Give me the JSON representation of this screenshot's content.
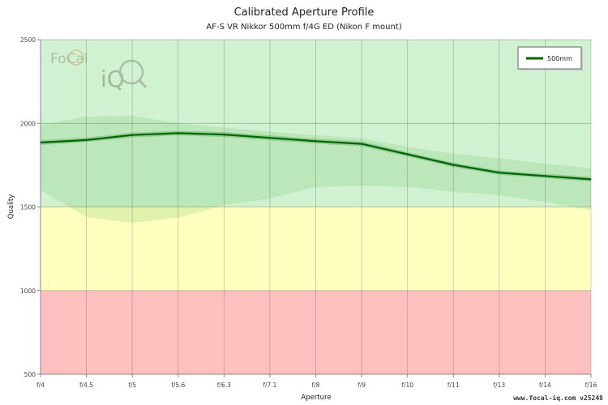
{
  "chart_data": {
    "type": "line",
    "title": "Calibrated Aperture Profile",
    "subtitle": "AF-S VR Nikkor 500mm f/4G ED (Nikon F mount)",
    "xlabel": "Aperture",
    "ylabel": "Quality",
    "categories": [
      "f/4",
      "f/4.5",
      "f/5",
      "f/5.6",
      "f/6.3",
      "f/7.1",
      "f/8",
      "f/9",
      "f/10",
      "f/11",
      "f/13",
      "f/14",
      "f/16"
    ],
    "ylim": [
      500,
      2500
    ],
    "yticks": [
      500,
      1000,
      1500,
      2000,
      2500
    ],
    "bands": [
      {
        "from": 500,
        "to": 1000,
        "color": "#ffc0c0"
      },
      {
        "from": 1000,
        "to": 1500,
        "color": "#ffffc0"
      },
      {
        "from": 1500,
        "to": 2500,
        "color": "#d0f2d0"
      }
    ],
    "outer_range": {
      "upper": [
        1990,
        2040,
        2045,
        2000,
        1975,
        1950,
        1930,
        1910,
        1860,
        1820,
        1790,
        1760,
        1730
      ],
      "lower": [
        1600,
        1440,
        1405,
        1435,
        1510,
        1550,
        1620,
        1628,
        1620,
        1590,
        1570,
        1530,
        1480
      ]
    },
    "inner_range": {
      "upper": [
        1900,
        1915,
        1945,
        1955,
        1948,
        1928,
        1908,
        1892,
        1828,
        1765,
        1718,
        1698,
        1680
      ],
      "lower": [
        1870,
        1888,
        1915,
        1928,
        1918,
        1898,
        1878,
        1862,
        1802,
        1738,
        1692,
        1672,
        1652
      ]
    },
    "series": [
      {
        "name": "500mm",
        "color": "#006400",
        "values": [
          1885,
          1900,
          1930,
          1941,
          1933,
          1913,
          1893,
          1877,
          1815,
          1752,
          1705,
          1685,
          1665
        ]
      }
    ],
    "legend": "top-right",
    "grid": true
  },
  "watermark": {
    "line1": "FoCal",
    "line2": "iQ"
  },
  "footer": "www.focal-iq.com  v25248"
}
